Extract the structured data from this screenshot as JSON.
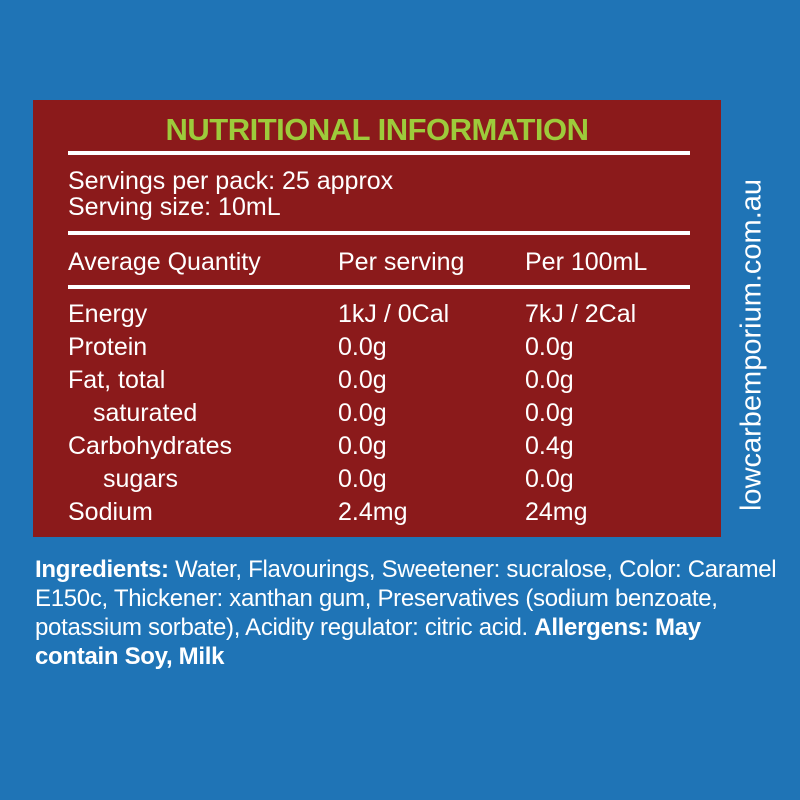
{
  "colors": {
    "background": "#1f74b6",
    "panel": "#8b1a1b",
    "title": "#9dcb3b",
    "text": "#ffffff"
  },
  "title": "NUTRITIONAL INFORMATION",
  "servings_per_pack": "Servings per pack: 25 approx",
  "serving_size": "Serving size: 10mL",
  "headers": [
    "Average Quantity",
    "Per serving",
    "Per 100mL"
  ],
  "rows": [
    {
      "name": "Energy",
      "per_serving": "1kJ / 0Cal",
      "per_100": "7kJ / 2Cal"
    },
    {
      "name": "Protein",
      "per_serving": "0.0g",
      "per_100": "0.0g"
    },
    {
      "name": "Fat, total",
      "per_serving": "0.0g",
      "per_100": "0.0g"
    },
    {
      "name": "saturated",
      "per_serving": "0.0g",
      "per_100": "0.0g"
    },
    {
      "name": "Carbohydrates",
      "per_serving": "0.0g",
      "per_100": "0.4g"
    },
    {
      "name": "sugars",
      "per_serving": "0.0g",
      "per_100": "0.0g"
    },
    {
      "name": "Sodium",
      "per_serving": "2.4mg",
      "per_100": "24mg"
    }
  ],
  "website": "lowcarbemporium.com.au",
  "ingredients": {
    "label": "Ingredients:",
    "text": " Water, Flavourings, Sweetener: sucralose, Color: Caramel E150c, Thickener: xanthan gum, Preservatives (sodium benzoate, potassium sorbate), Acidity regulator: citric acid. ",
    "allergens": "Allergens: May contain Soy, Milk"
  }
}
